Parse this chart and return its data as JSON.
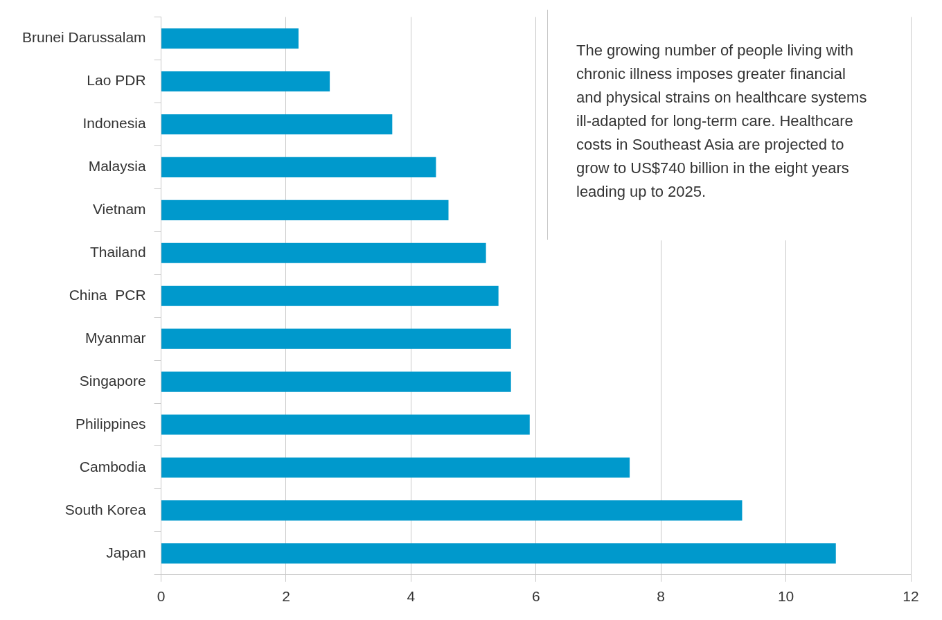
{
  "chart_data": {
    "type": "bar",
    "orientation": "horizontal",
    "categories": [
      "Brunei Darussalam",
      "Lao PDR",
      "Indonesia",
      "Malaysia",
      "Vietnam",
      "Thailand",
      "China  PCR",
      "Myanmar",
      "Singapore",
      "Philippines",
      "Cambodia",
      "South Korea",
      "Japan"
    ],
    "values": [
      2.2,
      2.7,
      3.7,
      4.4,
      4.6,
      5.2,
      5.4,
      5.6,
      5.6,
      5.9,
      7.5,
      9.3,
      10.8
    ],
    "color": "#0099cc",
    "xlim": [
      0,
      12
    ],
    "xticks": [
      0,
      2,
      4,
      6,
      8,
      10,
      12
    ],
    "grid": "x",
    "legend": false,
    "annotations": [
      "The growing number of people living with chronic illness imposes greater financial and physical strains on healthcare systems ill-adapted for long-term care. Healthcare costs in Southeast Asia are projected to grow to US$740 billion in the eight years leading up to 2025."
    ]
  }
}
